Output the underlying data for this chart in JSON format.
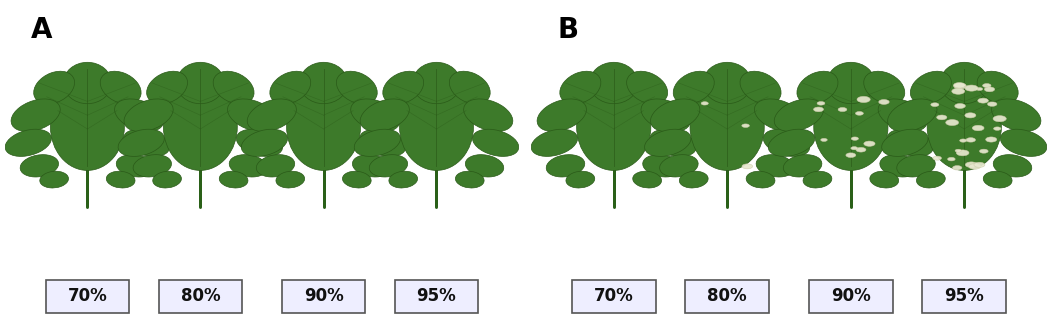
{
  "panel_A_label": "A",
  "panel_B_label": "B",
  "humidity_labels": [
    "70%",
    "80%",
    "90%",
    "95%"
  ],
  "background_color": "#c8424e",
  "label_box_facecolor": "#eeeeff",
  "label_box_edgecolor": "#555555",
  "label_text_color": "#111111",
  "panel_label_color": "#000000",
  "panel_label_fontsize": 20,
  "label_fontsize": 12,
  "fig_width": 10.52,
  "fig_height": 3.26,
  "dpi": 100,
  "leaf_color": "#3d7a2a",
  "leaf_dark": "#2a5a18",
  "leaf_light": "#5aaa40",
  "stem_color": "#2a6018",
  "spot_color": "#e8e8d0",
  "border_color": "#777777",
  "border_linewidth": 1.2,
  "panel_edge_color": "#888888"
}
